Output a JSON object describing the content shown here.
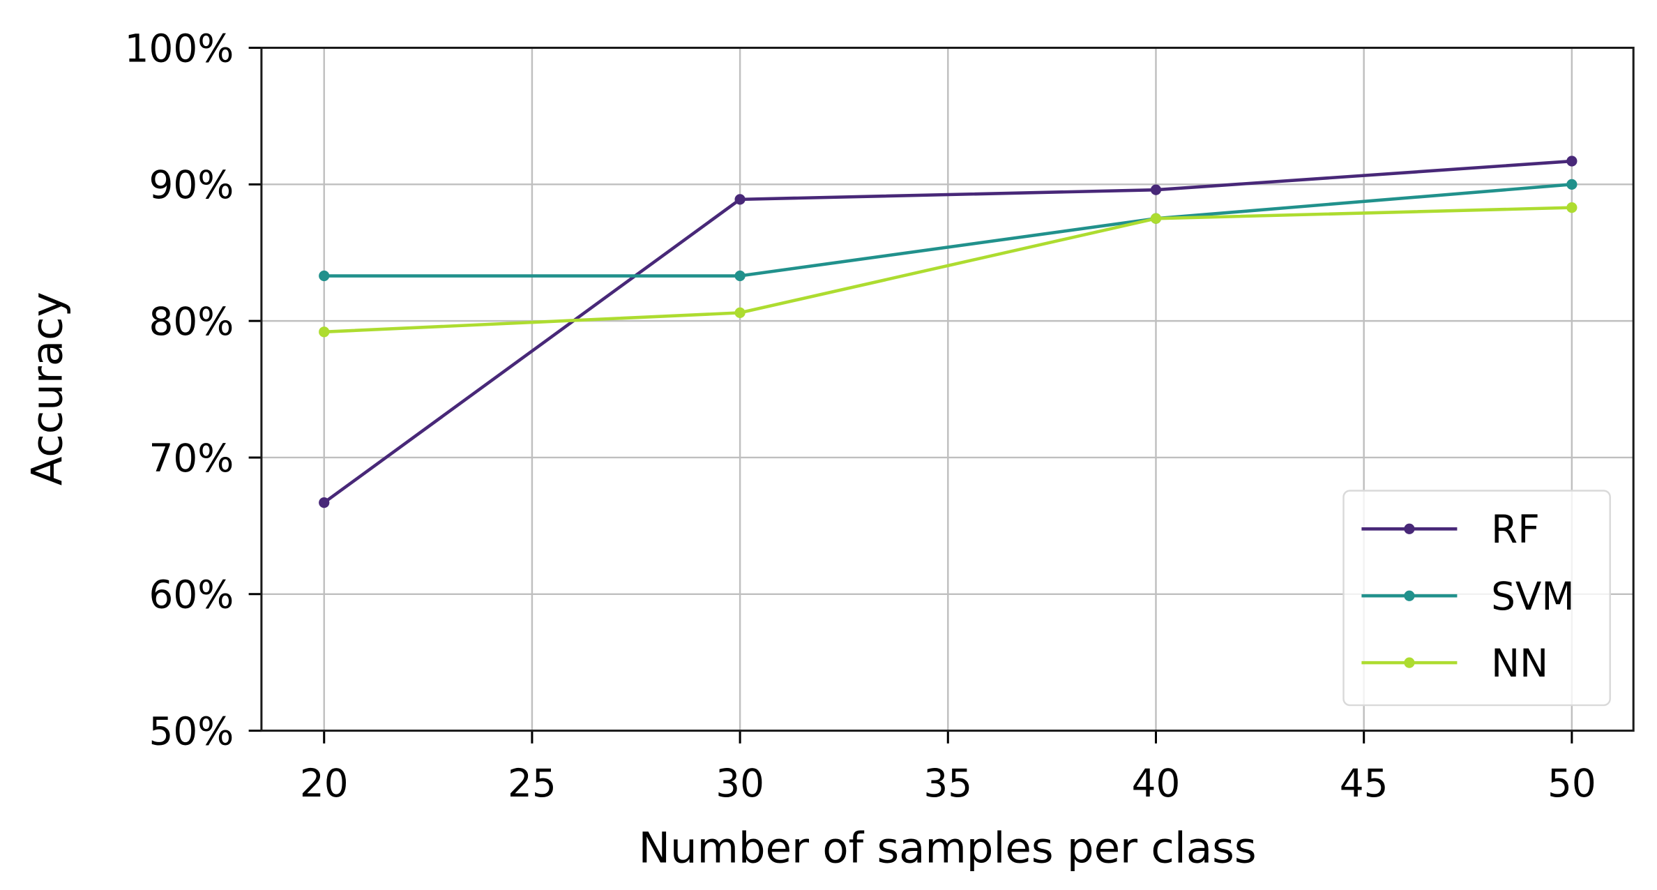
{
  "chart_data": {
    "type": "line",
    "title": "",
    "xlabel": "Number of samples per class",
    "ylabel": "Accuracy",
    "x": [
      20,
      30,
      40,
      50
    ],
    "xlim": [
      18.5,
      51.5
    ],
    "ylim": [
      50,
      100
    ],
    "xticks": [
      20,
      25,
      30,
      35,
      40,
      45,
      50
    ],
    "yticks": [
      50,
      60,
      70,
      80,
      90,
      100
    ],
    "ytick_labels": [
      "50%",
      "60%",
      "70%",
      "80%",
      "90%",
      "100%"
    ],
    "grid": true,
    "legend_position": "lower right",
    "series": [
      {
        "name": "RF",
        "color": "#482878",
        "values": [
          66.7,
          88.9,
          89.6,
          91.7
        ]
      },
      {
        "name": "SVM",
        "color": "#21918c",
        "values": [
          83.3,
          83.3,
          87.5,
          90.0
        ]
      },
      {
        "name": "NN",
        "color": "#addc30",
        "values": [
          79.2,
          80.6,
          87.5,
          88.3
        ]
      }
    ]
  }
}
